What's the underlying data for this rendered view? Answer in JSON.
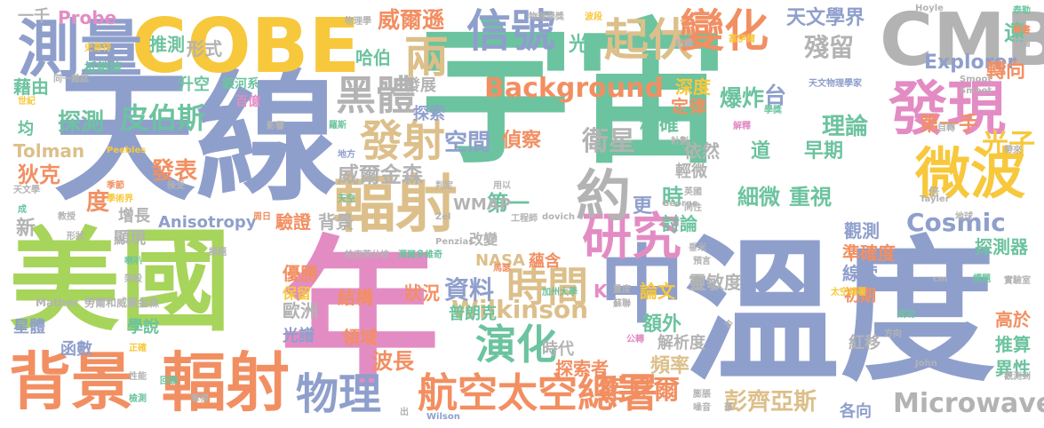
{
  "palette": {
    "green": "#6cc39f",
    "blue": "#8f9fcc",
    "lime": "#a7d45a",
    "pink": "#e38cc4",
    "orange": "#f28f62",
    "gold": "#f7c83c",
    "tan": "#dcbf8a",
    "gray": "#b3b3b3"
  },
  "words": [
    {
      "text": "宇宙",
      "color": "green"
    },
    {
      "text": "溫度",
      "color": "blue"
    },
    {
      "text": "天線",
      "color": "blue"
    },
    {
      "text": "年",
      "color": "pink"
    },
    {
      "text": "美國",
      "color": "lime"
    },
    {
      "text": "中",
      "color": "blue"
    },
    {
      "text": "COBE",
      "color": "gold"
    },
    {
      "text": "CMB",
      "color": "gray"
    },
    {
      "text": "背景",
      "color": "orange"
    },
    {
      "text": "輻射",
      "color": "orange"
    },
    {
      "text": "測量",
      "color": "blue"
    },
    {
      "text": "輻射",
      "color": "tan"
    },
    {
      "text": "發現",
      "color": "pink"
    },
    {
      "text": "微波",
      "color": "gold"
    },
    {
      "text": "研究",
      "color": "pink"
    },
    {
      "text": "信號",
      "color": "blue"
    },
    {
      "text": "起伏",
      "color": "tan"
    },
    {
      "text": "變化",
      "color": "orange"
    },
    {
      "text": "兩",
      "color": "tan"
    },
    {
      "text": "黑體",
      "color": "gray"
    },
    {
      "text": "發射",
      "color": "tan"
    },
    {
      "text": "約",
      "color": "gray"
    },
    {
      "text": "物理",
      "color": "blue"
    },
    {
      "text": "時間",
      "color": "tan"
    },
    {
      "text": "航空太空總署",
      "color": "orange"
    },
    {
      "text": "演化",
      "color": "green"
    },
    {
      "text": "皮伯斯",
      "color": "green"
    },
    {
      "text": "Background",
      "color": "orange"
    },
    {
      "text": "Wilkinson",
      "color": "tan"
    },
    {
      "text": "Microwave",
      "color": "gray"
    },
    {
      "text": "Cosmic",
      "color": "blue"
    },
    {
      "text": "光子",
      "color": "gold"
    },
    {
      "text": "威爾遜",
      "color": "orange"
    },
    {
      "text": "威爾金森",
      "color": "gray"
    },
    {
      "text": "資料",
      "color": "blue"
    },
    {
      "text": "衛星",
      "color": "gray"
    },
    {
      "text": "彭齊亞斯",
      "color": "tan"
    },
    {
      "text": "諾貝爾",
      "color": "orange"
    },
    {
      "text": "天文學界",
      "color": "blue"
    },
    {
      "text": "殘留",
      "color": "gray"
    },
    {
      "text": "Explorer",
      "color": "blue"
    },
    {
      "text": "遠",
      "color": "green"
    },
    {
      "text": "轉向",
      "color": "orange"
    },
    {
      "text": "理論",
      "color": "green"
    },
    {
      "text": "爆炸",
      "color": "green"
    },
    {
      "text": "台",
      "color": "blue"
    },
    {
      "text": "深度",
      "color": "gold"
    },
    {
      "text": "定律",
      "color": "orange"
    },
    {
      "text": "精確",
      "color": "green"
    },
    {
      "text": "空間",
      "color": "blue"
    },
    {
      "text": "偵察",
      "color": "orange"
    },
    {
      "text": "光",
      "color": "green"
    },
    {
      "text": "形式",
      "color": "gray"
    },
    {
      "text": "推測",
      "color": "green"
    },
    {
      "text": "哈伯",
      "color": "green"
    },
    {
      "text": "發展",
      "color": "gray"
    },
    {
      "text": "探索",
      "color": "blue"
    },
    {
      "text": "探測",
      "color": "green"
    },
    {
      "text": "升空",
      "color": "green"
    },
    {
      "text": "狄克",
      "color": "orange"
    },
    {
      "text": "發表",
      "color": "orange"
    },
    {
      "text": "Tolman",
      "color": "tan"
    },
    {
      "text": "Probe",
      "color": "pink"
    },
    {
      "text": "一千",
      "color": "gray"
    },
    {
      "text": "藉由",
      "color": "green"
    },
    {
      "text": "均",
      "color": "green"
    },
    {
      "text": "第一手",
      "color": "orange"
    },
    {
      "text": "早期",
      "color": "green"
    },
    {
      "text": "道",
      "color": "green"
    },
    {
      "text": "細微",
      "color": "green"
    },
    {
      "text": "重視",
      "color": "green"
    },
    {
      "text": "依然",
      "color": "gray"
    },
    {
      "text": "輕微",
      "color": "gray"
    },
    {
      "text": "時",
      "color": "green"
    },
    {
      "text": "更",
      "color": "blue"
    },
    {
      "text": "第一",
      "color": "green"
    },
    {
      "text": "Anisotropy",
      "color": "blue"
    },
    {
      "text": "度",
      "color": "orange"
    },
    {
      "text": "增長",
      "color": "gray"
    },
    {
      "text": "顯現",
      "color": "gray"
    },
    {
      "text": "新",
      "color": "gray"
    },
    {
      "text": "驗證",
      "color": "orange"
    },
    {
      "text": "背景",
      "color": "gray"
    },
    {
      "text": "WMAP",
      "color": "gray"
    },
    {
      "text": "改變",
      "color": "gray"
    },
    {
      "text": "NASA",
      "color": "tan"
    },
    {
      "text": "蘊含",
      "color": "orange"
    },
    {
      "text": "討論",
      "color": "green"
    },
    {
      "text": "觀測",
      "color": "blue"
    },
    {
      "text": "準確度",
      "color": "orange"
    },
    {
      "text": "線索",
      "color": "blue"
    },
    {
      "text": "探測器",
      "color": "green"
    },
    {
      "text": "靈敏度",
      "color": "gray"
    },
    {
      "text": "論文",
      "color": "gold"
    },
    {
      "text": "K",
      "color": "pink"
    },
    {
      "text": "額外",
      "color": "green"
    },
    {
      "text": "初期",
      "color": "orange"
    },
    {
      "text": "紅移",
      "color": "gray"
    },
    {
      "text": "高於",
      "color": "orange"
    },
    {
      "text": "推算",
      "color": "green"
    },
    {
      "text": "異性",
      "color": "green"
    },
    {
      "text": "各向",
      "color": "blue"
    },
    {
      "text": "結構",
      "color": "orange"
    },
    {
      "text": "狀況",
      "color": "orange"
    },
    {
      "text": "普朗克",
      "color": "green"
    },
    {
      "text": "歐洲",
      "color": "gray"
    },
    {
      "text": "優勝",
      "color": "orange"
    },
    {
      "text": "保留",
      "color": "gold"
    },
    {
      "text": "領域",
      "color": "orange"
    },
    {
      "text": "波長",
      "color": "orange"
    },
    {
      "text": "時代",
      "color": "gray"
    },
    {
      "text": "解析度",
      "color": "gray"
    },
    {
      "text": "光譜",
      "color": "blue"
    },
    {
      "text": "星體",
      "color": "blue"
    },
    {
      "text": "學說",
      "color": "green"
    },
    {
      "text": "函數",
      "color": "blue"
    },
    {
      "text": "探索者",
      "color": "orange"
    },
    {
      "text": "頻率",
      "color": "tan"
    },
    {
      "text": "Mather",
      "color": "gray"
    },
    {
      "text": "勞爾和威爾金森",
      "color": "gray"
    },
    {
      "text": "抵銷掉",
      "color": "green"
    },
    {
      "text": "同一雜誌",
      "color": "gray"
    },
    {
      "text": "世紀",
      "color": "gold"
    },
    {
      "text": "銀河系",
      "color": "green"
    },
    {
      "text": "百億",
      "color": "pink"
    },
    {
      "text": "天文物理學家",
      "color": "blue"
    },
    {
      "text": "Smoot",
      "color": "gray"
    },
    {
      "text": "Hoyle",
      "color": "gray"
    },
    {
      "text": "物理學",
      "color": "gray"
    },
    {
      "text": "物理學獎",
      "color": "gray"
    },
    {
      "text": "波段",
      "color": "gold"
    },
    {
      "text": "泰勒",
      "color": "green"
    },
    {
      "text": "專書",
      "color": "orange"
    },
    {
      "text": "貝爾",
      "color": "gray"
    },
    {
      "text": "史蒂特",
      "color": "gold"
    },
    {
      "text": "紡織",
      "color": "gray"
    },
    {
      "text": "George",
      "color": "gray"
    },
    {
      "text": "dovich",
      "color": "gray"
    },
    {
      "text": "Zel",
      "color": "gray"
    },
    {
      "text": "Penzias",
      "color": "gray"
    },
    {
      "text": "工程師",
      "color": "gray"
    },
    {
      "text": "柏克萊分校",
      "color": "gray"
    },
    {
      "text": "加州大學",
      "color": "green"
    },
    {
      "text": "馬瑟",
      "color": "orange"
    },
    {
      "text": "Wilson",
      "color": "blue"
    },
    {
      "text": "John",
      "color": "gray"
    },
    {
      "text": "Tayler",
      "color": "gray"
    },
    {
      "text": "Peebles",
      "color": "gold"
    },
    {
      "text": "天文學",
      "color": "gray"
    },
    {
      "text": "成",
      "color": "green"
    },
    {
      "text": "喇叭",
      "color": "green"
    },
    {
      "text": "架設",
      "color": "gray"
    },
    {
      "text": "課題",
      "color": "gray"
    },
    {
      "text": "教授",
      "color": "gray"
    },
    {
      "text": "形狀",
      "color": "gray"
    },
    {
      "text": "正確",
      "color": "gold"
    },
    {
      "text": "性能",
      "color": "gray"
    },
    {
      "text": "檢測",
      "color": "green"
    },
    {
      "text": "噪音",
      "color": "gray"
    },
    {
      "text": "膨脹",
      "color": "gray"
    },
    {
      "text": "公轉",
      "color": "pink"
    },
    {
      "text": "成功",
      "color": "green"
    },
    {
      "text": "方向",
      "color": "gray"
    },
    {
      "text": "觀測到",
      "color": "gray"
    },
    {
      "text": "實驗室",
      "color": "gray"
    },
    {
      "text": "標題",
      "color": "green"
    },
    {
      "text": "cm",
      "color": "gray"
    },
    {
      "text": "太空總署",
      "color": "gold"
    },
    {
      "text": "量度",
      "color": "gray"
    },
    {
      "text": "蘇聯",
      "color": "gray"
    },
    {
      "text": "地球",
      "color": "gray"
    },
    {
      "text": "同性",
      "color": "gray"
    },
    {
      "text": "英國",
      "color": "gray"
    },
    {
      "text": "解釋",
      "color": "pink"
    },
    {
      "text": "學獎",
      "color": "green"
    },
    {
      "text": "計劃",
      "color": "gray"
    },
    {
      "text": "帶來",
      "color": "gray"
    },
    {
      "text": "自轉",
      "color": "gray"
    },
    {
      "text": "倍",
      "color": "gray"
    },
    {
      "text": "判定",
      "color": "gray"
    },
    {
      "text": "用以",
      "color": "gray"
    },
    {
      "text": "接受",
      "color": "gray"
    },
    {
      "text": "季節",
      "color": "orange"
    },
    {
      "text": "學術界",
      "color": "gold"
    },
    {
      "text": "周日",
      "color": "orange"
    },
    {
      "text": "回饋",
      "color": "green"
    },
    {
      "text": "奪得",
      "color": "gray"
    },
    {
      "text": "天空",
      "color": "green"
    },
    {
      "text": "Smoot2",
      "color": "gray"
    },
    {
      "text": "地方",
      "color": "blue"
    },
    {
      "text": "羅斯",
      "color": "green"
    },
    {
      "text": "影響",
      "color": "gray"
    },
    {
      "text": "學",
      "color": "green"
    },
    {
      "text": "預言",
      "color": "gray"
    },
    {
      "text": "垂米",
      "color": "gray"
    },
    {
      "text": "塞伊爾",
      "color": "gold"
    },
    {
      "text": "令",
      "color": "gray"
    },
    {
      "text": "華",
      "color": "gray"
    },
    {
      "text": "出",
      "color": "gray"
    },
    {
      "text": "澤爾多維奇",
      "color": "green"
    }
  ]
}
